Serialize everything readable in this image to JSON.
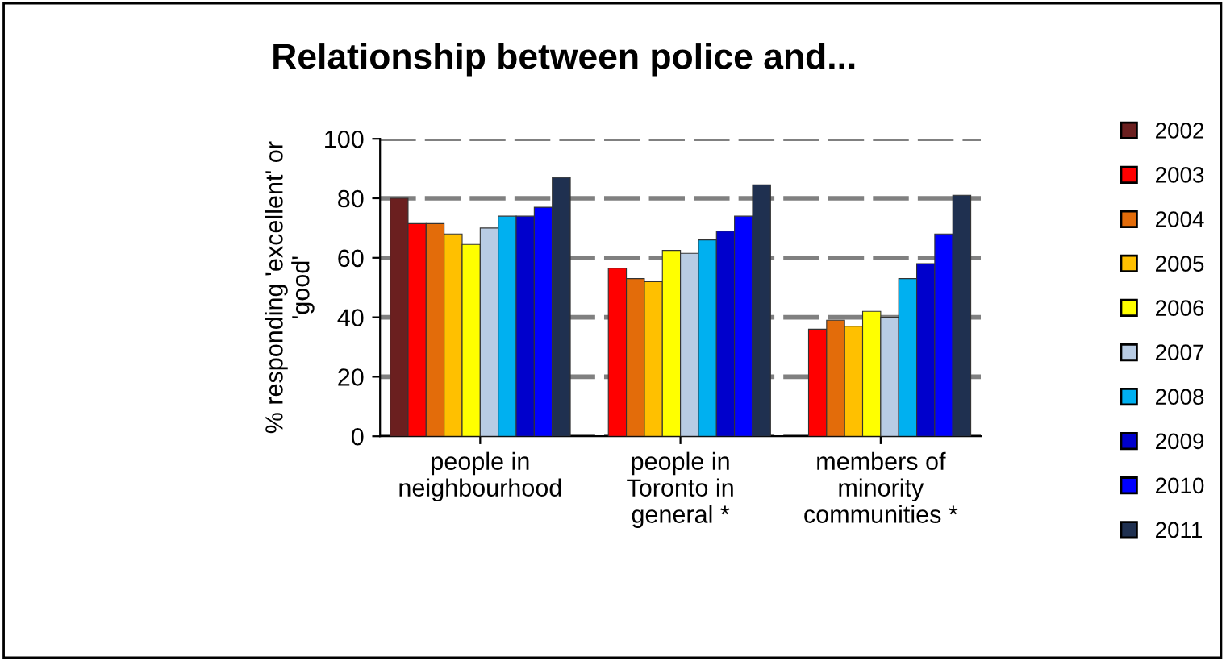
{
  "chart_data": {
    "type": "bar",
    "title": "Relationship between police and...",
    "ylabel": "% responding 'excellent' or\n'good'",
    "categories": [
      "people in\nneighbourhood",
      "people in\nToronto in\ngeneral *",
      "members of\nminority\ncommunities *"
    ],
    "ylim": [
      0,
      100
    ],
    "yticks": [
      0,
      20,
      40,
      60,
      80,
      100
    ],
    "grid": "y",
    "legend": "right",
    "series": [
      {
        "name": "2002",
        "color": "#6b1f1f",
        "values": [
          80,
          null,
          null
        ]
      },
      {
        "name": "2003",
        "color": "#ff0000",
        "values": [
          71.5,
          56.5,
          36
        ]
      },
      {
        "name": "2004",
        "color": "#e36c0a",
        "values": [
          71.5,
          53,
          39
        ]
      },
      {
        "name": "2005",
        "color": "#ffc000",
        "values": [
          68,
          52,
          37
        ]
      },
      {
        "name": "2006",
        "color": "#ffff00",
        "values": [
          64.5,
          62.5,
          42
        ]
      },
      {
        "name": "2007",
        "color": "#b8cce4",
        "values": [
          70,
          61.5,
          40
        ]
      },
      {
        "name": "2008",
        "color": "#00b0f0",
        "values": [
          74,
          66,
          53
        ]
      },
      {
        "name": "2009",
        "color": "#0000cc",
        "values": [
          74,
          69,
          58
        ]
      },
      {
        "name": "2010",
        "color": "#0000ff",
        "values": [
          77,
          74,
          68
        ]
      },
      {
        "name": "2011",
        "color": "#1f3050",
        "values": [
          87,
          84.5,
          81
        ]
      }
    ]
  }
}
